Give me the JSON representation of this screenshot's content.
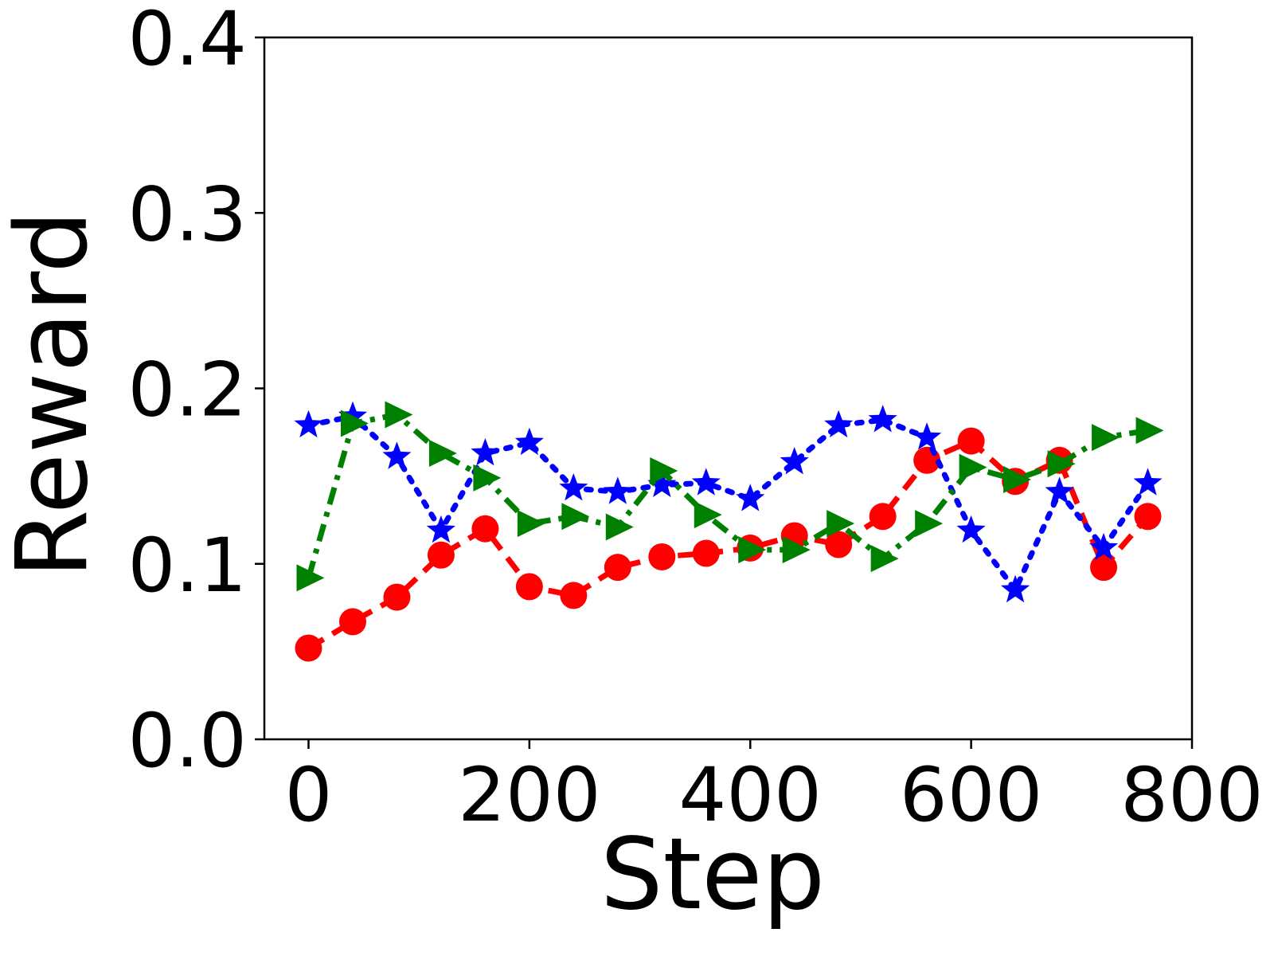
{
  "chart_data": {
    "type": "line",
    "title": "",
    "xlabel": "Step",
    "ylabel": "Reward",
    "xlim": [
      -40,
      800
    ],
    "ylim": [
      0.0,
      0.4
    ],
    "xticks": [
      0,
      200,
      400,
      600,
      800
    ],
    "yticks": [
      0.0,
      0.1,
      0.2,
      0.3,
      0.4
    ],
    "xtick_labels": [
      "0",
      "200",
      "400",
      "600",
      "800"
    ],
    "ytick_labels": [
      "0.0",
      "0.1",
      "0.2",
      "0.3",
      "0.4"
    ],
    "grid": false,
    "legend": "none",
    "x": [
      0,
      40,
      80,
      120,
      160,
      200,
      240,
      280,
      320,
      360,
      400,
      440,
      480,
      520,
      560,
      600,
      640,
      680,
      720,
      760
    ],
    "series": [
      {
        "color": "#ff0000",
        "linestyle": "dashed",
        "marker": "circle",
        "values": [
          0.052,
          0.067,
          0.081,
          0.105,
          0.12,
          0.087,
          0.082,
          0.098,
          0.104,
          0.106,
          0.109,
          0.116,
          0.111,
          0.127,
          0.159,
          0.17,
          0.147,
          0.159,
          0.098,
          0.127
        ]
      },
      {
        "color": "#0000ff",
        "linestyle": "dotted",
        "marker": "star",
        "values": [
          0.179,
          0.184,
          0.161,
          0.119,
          0.163,
          0.169,
          0.143,
          0.141,
          0.145,
          0.146,
          0.137,
          0.158,
          0.179,
          0.182,
          0.172,
          0.119,
          0.085,
          0.141,
          0.109,
          0.146
        ]
      },
      {
        "color": "#008000",
        "linestyle": "dashdot",
        "marker": "triangle-right",
        "values": [
          0.092,
          0.18,
          0.185,
          0.163,
          0.149,
          0.123,
          0.127,
          0.121,
          0.153,
          0.128,
          0.108,
          0.108,
          0.123,
          0.103,
          0.123,
          0.155,
          0.148,
          0.157,
          0.172,
          0.176
        ]
      }
    ]
  }
}
